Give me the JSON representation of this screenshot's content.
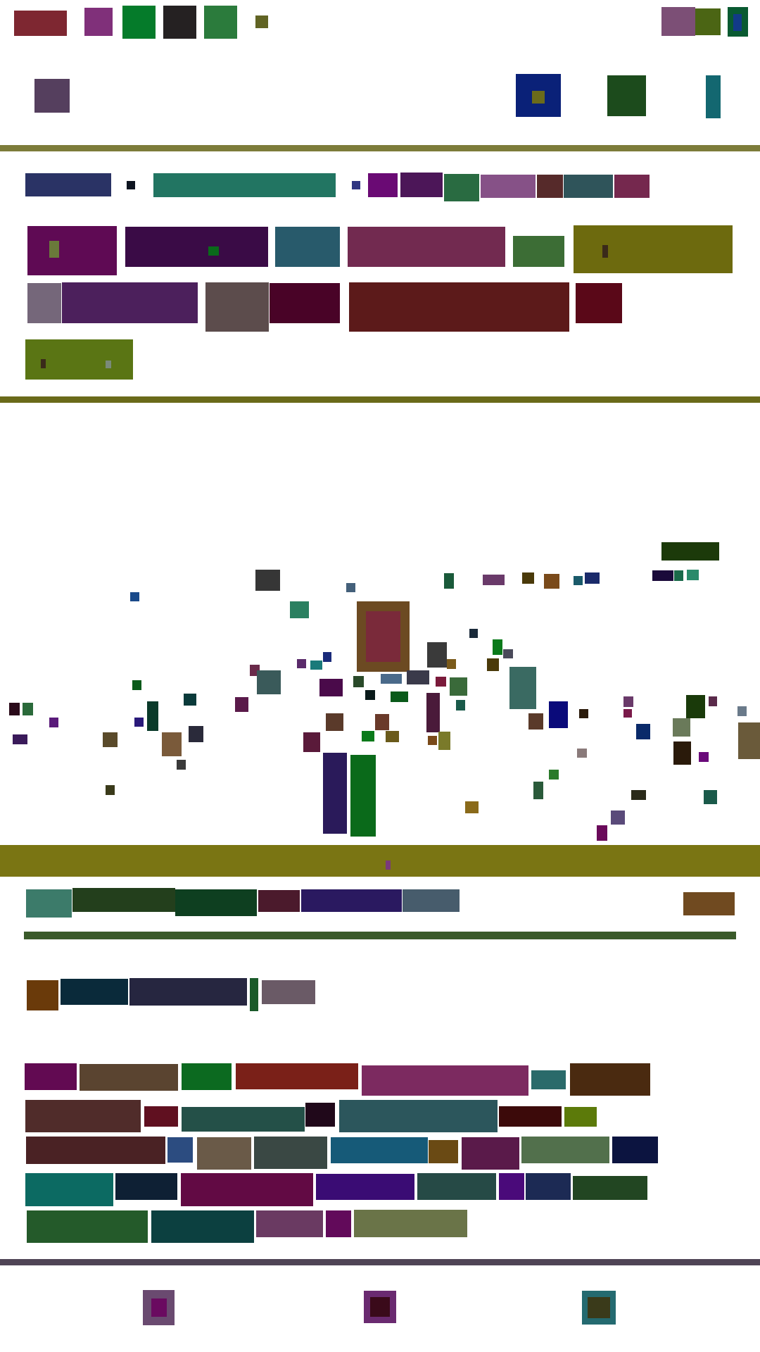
{
  "palette": {
    "background": "#ffffff",
    "olive_divider": "#7d7c3a",
    "olive_banner": "#7a7513",
    "dark_green_rule": "#3a5a2a",
    "slate_divider": "#4f4456"
  },
  "description_note": "",
  "rows": {
    "header_icons": [
      "#7e2731",
      "#80307a",
      "#057b2a",
      "#252122",
      "#2b7b3c",
      "#616424",
      "#7c4f76",
      "#4b6514",
      "#095a31"
    ],
    "header_second": [
      "#553f5e",
      "#0a2178",
      "#1c4b1c",
      "#136770"
    ],
    "chip_row_1": [
      "#2a3365",
      "#0d1420",
      "#227562",
      "#2f3582",
      "#6a0a74",
      "#4c1658",
      "#296b41",
      "#865187",
      "#562a2a",
      "#2f545a",
      "#75284e"
    ],
    "card_row_1": [
      "#5f0a54",
      "#3a0b46",
      "#285a6b",
      "#722a50",
      "#3c6d35",
      "#6d6a0e"
    ],
    "card_row_2": [
      "#75677a",
      "#4c205c",
      "#5c4c4c",
      "#490327",
      "#5c1a1a",
      "#5a0818"
    ],
    "card_row_3": [
      "#5a7514"
    ],
    "toolbar": [
      "#3c7b6a",
      "#233f1c",
      "#0e3f20",
      "#4b1a2c",
      "#2a1960",
      "#475c6c",
      "#704a20"
    ],
    "chips_2": [
      "#6a3a0a",
      "#0a2a3a",
      "#262640",
      "#1a5a2a",
      "#6a5a66"
    ],
    "tiles_1": [
      "#620a52",
      "#5a4430",
      "#0c6a20",
      "#7a2018",
      "#7c2a60",
      "#2a6a6a",
      "#4a2a10"
    ],
    "tiles_2": [
      "#502c2a",
      "#601020",
      "#245048",
      "#20081a",
      "#2c565c",
      "#3c0a0a",
      "#5c7a0a"
    ],
    "tiles_3": [
      "#4a2224",
      "#2c4c80",
      "#6a5a48",
      "#3a4844",
      "#165a78",
      "#6a4a14",
      "#5a1a4a",
      "#52704c",
      "#0c1440"
    ],
    "tiles_4": [
      "#0c6a62",
      "#0e2034",
      "#620a44",
      "#3a0c74",
      "#264a46",
      "#4a0a7a",
      "#1c2a54",
      "#224622"
    ],
    "tiles_5": [
      "#245a2a",
      "#0c4040",
      "#6a3a62",
      "#620a5a",
      "#6a7448"
    ],
    "footer_icons": [
      "#6a4a70",
      "#6a2a70",
      "#246a70"
    ]
  }
}
